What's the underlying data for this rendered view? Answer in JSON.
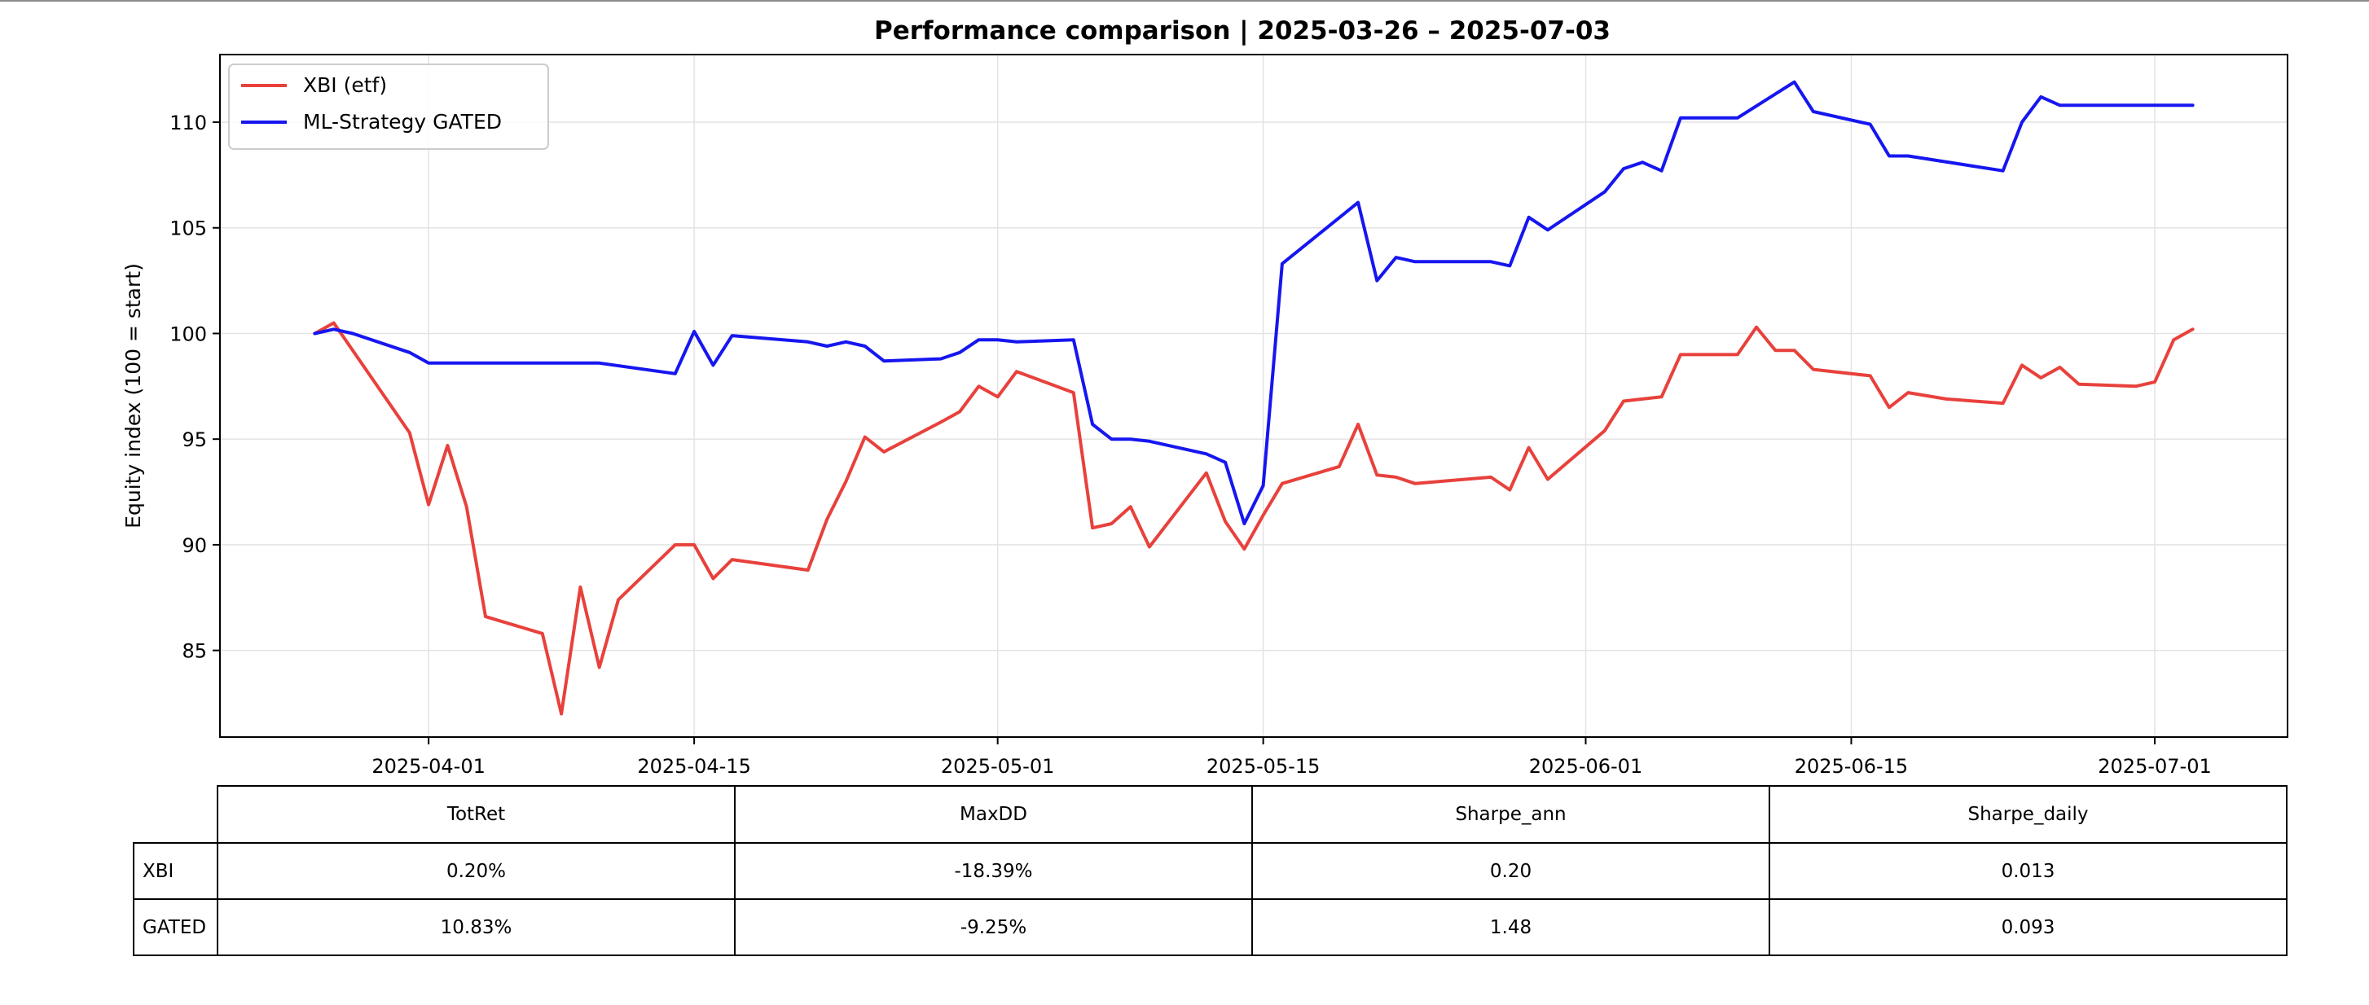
{
  "chart_data": {
    "type": "line",
    "title": "Performance comparison | 2025-03-26 – 2025-07-03",
    "ylabel": "Equity index (100 = start)",
    "xlabel": "",
    "x_axis_type": "date",
    "xlim": [
      "2025-03-21",
      "2025-07-08"
    ],
    "ylim": [
      80.9,
      113.2
    ],
    "x_ticks": [
      "2025-04-01",
      "2025-04-15",
      "2025-05-01",
      "2025-05-15",
      "2025-06-01",
      "2025-06-15",
      "2025-07-01"
    ],
    "y_ticks": [
      85,
      90,
      95,
      100,
      105,
      110
    ],
    "grid": true,
    "legend_position": "upper-left",
    "series": [
      {
        "name": "XBI (etf)",
        "color": "#e8413c",
        "points": [
          [
            "2025-03-26",
            100.0
          ],
          [
            "2025-03-27",
            100.5
          ],
          [
            "2025-03-31",
            95.3
          ],
          [
            "2025-04-01",
            91.9
          ],
          [
            "2025-04-02",
            94.7
          ],
          [
            "2025-04-03",
            91.8
          ],
          [
            "2025-04-04",
            86.6
          ],
          [
            "2025-04-07",
            85.8
          ],
          [
            "2025-04-08",
            82.0
          ],
          [
            "2025-04-09",
            88.0
          ],
          [
            "2025-04-10",
            84.2
          ],
          [
            "2025-04-11",
            87.4
          ],
          [
            "2025-04-14",
            90.0
          ],
          [
            "2025-04-15",
            90.0
          ],
          [
            "2025-04-16",
            88.4
          ],
          [
            "2025-04-17",
            89.3
          ],
          [
            "2025-04-21",
            88.8
          ],
          [
            "2025-04-22",
            91.2
          ],
          [
            "2025-04-23",
            93.0
          ],
          [
            "2025-04-24",
            95.1
          ],
          [
            "2025-04-25",
            94.4
          ],
          [
            "2025-04-28",
            95.8
          ],
          [
            "2025-04-29",
            96.3
          ],
          [
            "2025-04-30",
            97.5
          ],
          [
            "2025-05-01",
            97.0
          ],
          [
            "2025-05-02",
            98.2
          ],
          [
            "2025-05-05",
            97.2
          ],
          [
            "2025-05-06",
            90.8
          ],
          [
            "2025-05-07",
            91.0
          ],
          [
            "2025-05-08",
            91.8
          ],
          [
            "2025-05-09",
            89.9
          ],
          [
            "2025-05-12",
            93.4
          ],
          [
            "2025-05-13",
            91.1
          ],
          [
            "2025-05-14",
            89.8
          ],
          [
            "2025-05-15",
            91.4
          ],
          [
            "2025-05-16",
            92.9
          ],
          [
            "2025-05-19",
            93.7
          ],
          [
            "2025-05-20",
            95.7
          ],
          [
            "2025-05-21",
            93.3
          ],
          [
            "2025-05-22",
            93.2
          ],
          [
            "2025-05-23",
            92.9
          ],
          [
            "2025-05-27",
            93.2
          ],
          [
            "2025-05-28",
            92.6
          ],
          [
            "2025-05-29",
            94.6
          ],
          [
            "2025-05-30",
            93.1
          ],
          [
            "2025-06-02",
            95.4
          ],
          [
            "2025-06-03",
            96.8
          ],
          [
            "2025-06-04",
            96.9
          ],
          [
            "2025-06-05",
            97.0
          ],
          [
            "2025-06-06",
            99.0
          ],
          [
            "2025-06-09",
            99.0
          ],
          [
            "2025-06-10",
            100.3
          ],
          [
            "2025-06-11",
            99.2
          ],
          [
            "2025-06-12",
            99.2
          ],
          [
            "2025-06-13",
            98.3
          ],
          [
            "2025-06-16",
            98.0
          ],
          [
            "2025-06-17",
            96.5
          ],
          [
            "2025-06-18",
            97.2
          ],
          [
            "2025-06-20",
            96.9
          ],
          [
            "2025-06-23",
            96.7
          ],
          [
            "2025-06-24",
            98.5
          ],
          [
            "2025-06-25",
            97.9
          ],
          [
            "2025-06-26",
            98.4
          ],
          [
            "2025-06-27",
            97.6
          ],
          [
            "2025-06-30",
            97.5
          ],
          [
            "2025-07-01",
            97.7
          ],
          [
            "2025-07-02",
            99.7
          ],
          [
            "2025-07-03",
            100.2
          ]
        ]
      },
      {
        "name": "ML-Strategy GATED",
        "color": "#1616f0",
        "points": [
          [
            "2025-03-26",
            100.0
          ],
          [
            "2025-03-27",
            100.2
          ],
          [
            "2025-03-28",
            100.0
          ],
          [
            "2025-03-31",
            99.1
          ],
          [
            "2025-04-01",
            98.6
          ],
          [
            "2025-04-10",
            98.6
          ],
          [
            "2025-04-14",
            98.1
          ],
          [
            "2025-04-15",
            100.1
          ],
          [
            "2025-04-16",
            98.5
          ],
          [
            "2025-04-17",
            99.9
          ],
          [
            "2025-04-21",
            99.6
          ],
          [
            "2025-04-22",
            99.4
          ],
          [
            "2025-04-23",
            99.6
          ],
          [
            "2025-04-24",
            99.4
          ],
          [
            "2025-04-25",
            98.7
          ],
          [
            "2025-04-28",
            98.8
          ],
          [
            "2025-04-29",
            99.1
          ],
          [
            "2025-04-30",
            99.7
          ],
          [
            "2025-05-01",
            99.7
          ],
          [
            "2025-05-02",
            99.6
          ],
          [
            "2025-05-05",
            99.7
          ],
          [
            "2025-05-06",
            95.7
          ],
          [
            "2025-05-07",
            95.0
          ],
          [
            "2025-05-08",
            95.0
          ],
          [
            "2025-05-09",
            94.9
          ],
          [
            "2025-05-12",
            94.3
          ],
          [
            "2025-05-13",
            93.9
          ],
          [
            "2025-05-14",
            91.0
          ],
          [
            "2025-05-15",
            92.8
          ],
          [
            "2025-05-16",
            103.3
          ],
          [
            "2025-05-20",
            106.2
          ],
          [
            "2025-05-21",
            102.5
          ],
          [
            "2025-05-22",
            103.6
          ],
          [
            "2025-05-23",
            103.4
          ],
          [
            "2025-05-27",
            103.4
          ],
          [
            "2025-05-28",
            103.2
          ],
          [
            "2025-05-29",
            105.5
          ],
          [
            "2025-05-30",
            104.9
          ],
          [
            "2025-06-02",
            106.7
          ],
          [
            "2025-06-03",
            107.8
          ],
          [
            "2025-06-04",
            108.1
          ],
          [
            "2025-06-05",
            107.7
          ],
          [
            "2025-06-06",
            110.2
          ],
          [
            "2025-06-09",
            110.2
          ],
          [
            "2025-06-12",
            111.9
          ],
          [
            "2025-06-13",
            110.5
          ],
          [
            "2025-06-16",
            109.9
          ],
          [
            "2025-06-17",
            108.4
          ],
          [
            "2025-06-18",
            108.4
          ],
          [
            "2025-06-23",
            107.7
          ],
          [
            "2025-06-24",
            110.0
          ],
          [
            "2025-06-25",
            111.2
          ],
          [
            "2025-06-26",
            110.8
          ],
          [
            "2025-07-03",
            110.8
          ]
        ]
      }
    ]
  },
  "table": {
    "columns": [
      "TotRet",
      "MaxDD",
      "Sharpe_ann",
      "Sharpe_daily"
    ],
    "rows": [
      {
        "label": "XBI",
        "cells": [
          "0.20%",
          "-18.39%",
          "0.20",
          "0.013"
        ]
      },
      {
        "label": "GATED",
        "cells": [
          "10.83%",
          "-9.25%",
          "1.48",
          "0.093"
        ]
      }
    ]
  }
}
